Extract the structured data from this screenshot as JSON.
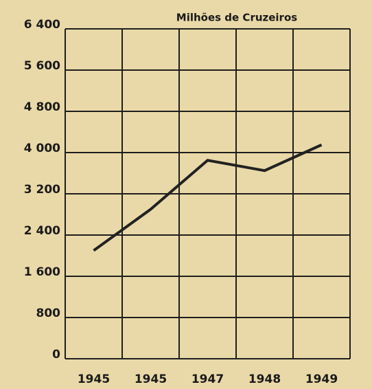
{
  "chart_data": {
    "type": "line",
    "title": "Milhões de Cruzeiros",
    "categories": [
      "1945",
      "1945",
      "1947",
      "1948",
      "1949"
    ],
    "series": [
      {
        "name": null,
        "color": "#222222",
        "values": [
          2100,
          2900,
          3850,
          3650,
          4150
        ]
      }
    ],
    "ylim": [
      0,
      6400
    ],
    "yticks": [
      0,
      800,
      {
        "value": 1600,
        "label": "1 600"
      },
      {
        "value": 2400,
        "label": "2 400"
      },
      {
        "value": 3200,
        "label": "3 200"
      },
      {
        "value": 4000,
        "label": "4 000"
      },
      {
        "value": 4800,
        "label": "4 800"
      },
      {
        "value": 5600,
        "label": "5 600"
      },
      {
        "value": 6400,
        "label": "6 400"
      }
    ],
    "grid": true
  }
}
